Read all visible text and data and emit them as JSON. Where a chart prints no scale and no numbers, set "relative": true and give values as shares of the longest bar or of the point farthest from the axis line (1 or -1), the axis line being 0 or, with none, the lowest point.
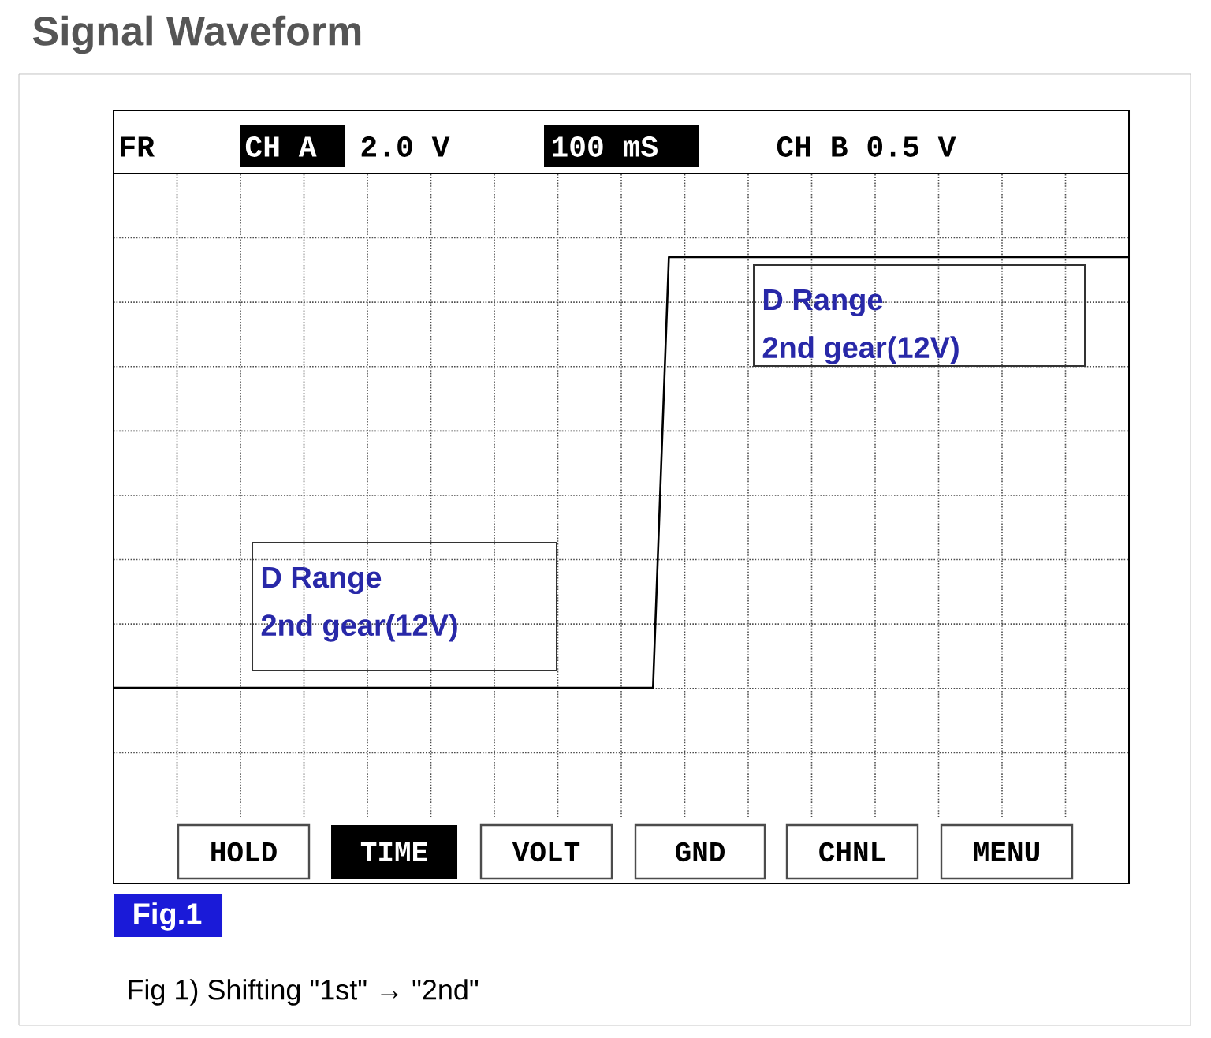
{
  "chart_data": {
    "type": "line",
    "title": "Signal Waveform",
    "relative": true,
    "grid": true,
    "categories": [
      null,
      null,
      null,
      null,
      null,
      null,
      null,
      null,
      null,
      null,
      null,
      null,
      null,
      null,
      null,
      null,
      null,
      null,
      null,
      null,
      null,
      null,
      null,
      null,
      null,
      null,
      null,
      null,
      null,
      null,
      null,
      null,
      null,
      null,
      null,
      null,
      null,
      null,
      null,
      null,
      null,
      null,
      null,
      null,
      null,
      null,
      null,
      null,
      null,
      null,
      null,
      null,
      null,
      null,
      null,
      null,
      null,
      null,
      null,
      null,
      null,
      null,
      null,
      null,
      null
    ],
    "series": [
      {
        "color": "#000000",
        "values": [
          0,
          0,
          0,
          0,
          0,
          0,
          0,
          0,
          0,
          0,
          0,
          0,
          0,
          0,
          0,
          0,
          0,
          0,
          0,
          0,
          0,
          0,
          0,
          0,
          0,
          0,
          0,
          0,
          0,
          0,
          0,
          0,
          0,
          0,
          0,
          1,
          1,
          1,
          1,
          1,
          1,
          1,
          1,
          1,
          1,
          1,
          1,
          1,
          1,
          1,
          1,
          1,
          1,
          1,
          1,
          1,
          1,
          1,
          1,
          1,
          1,
          1,
          1,
          1,
          1
        ]
      }
    ],
    "annotations": [
      "FR",
      "CH A",
      "2.0 V",
      "100 mS",
      "CH B 0.5 V",
      "HOLD",
      "TIME",
      "VOLT",
      "GND",
      "CHNL",
      "MENU",
      "D Range",
      "2nd gear(12V)",
      "D Range",
      "2nd gear(12V)",
      "Fig.1",
      "Fig 1) Shifting \"1st\" → \"2nd\""
    ]
  }
}
